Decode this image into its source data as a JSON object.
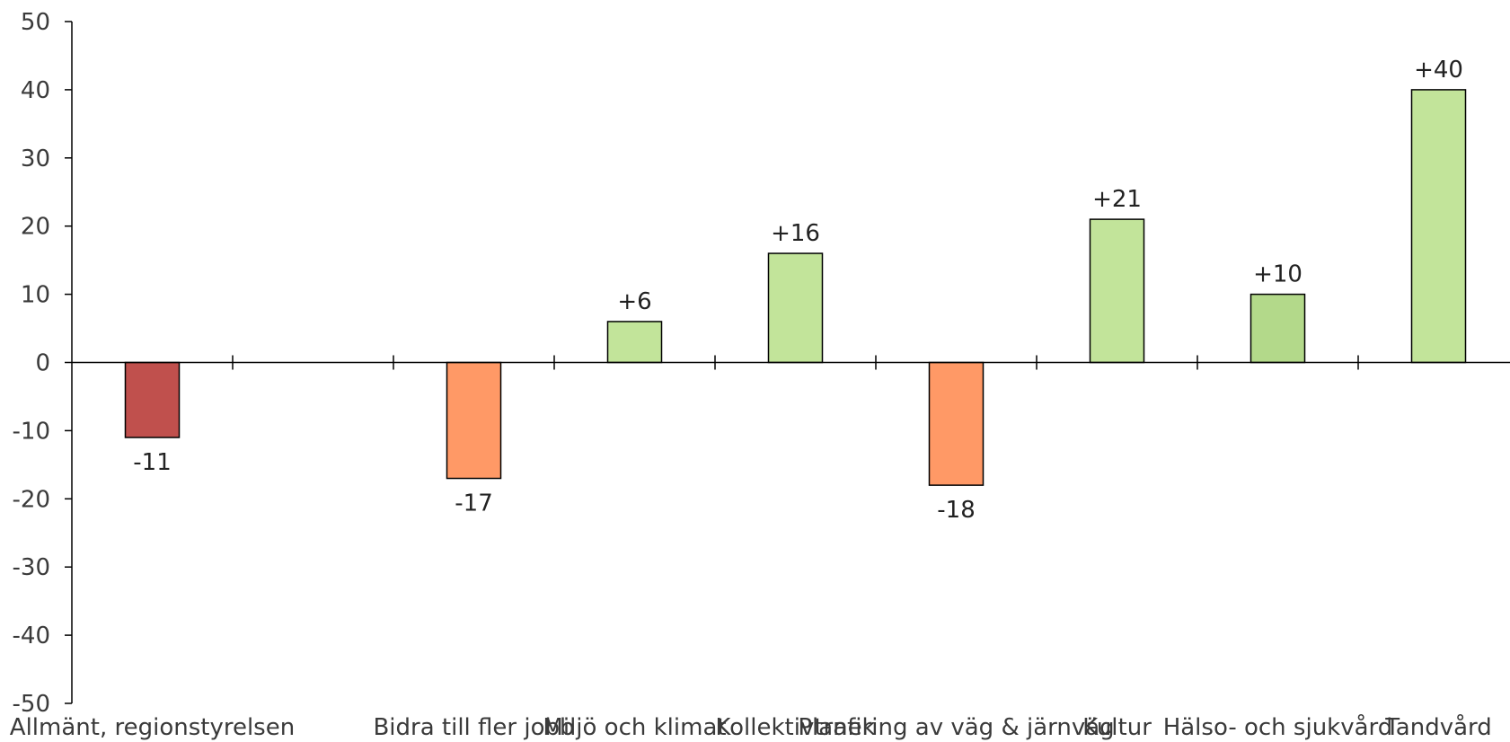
{
  "chart_data": {
    "type": "bar",
    "title": "",
    "xlabel": "",
    "ylabel": "",
    "categories": [
      "Allmänt, regionstyrelsen",
      "",
      "Bidra till fler jobb",
      "Miljö och klimat",
      "Kollektivtrafik",
      "Planering av väg & järnväg",
      "Kultur",
      "Hälso- och sjukvård",
      "Tandvård"
    ],
    "values": [
      -11,
      null,
      -17,
      6,
      16,
      -18,
      21,
      10,
      40
    ],
    "data_labels": [
      "-11",
      "",
      "-17",
      "+6",
      "+16",
      "-18",
      "+21",
      "+10",
      "+40"
    ],
    "colors": [
      "#c0504d",
      null,
      "#ff9966",
      "#c2e49a",
      "#c2e49a",
      "#ff9966",
      "#c2e49a",
      "#b3d98a",
      "#c2e49a"
    ],
    "ylim": [
      -50,
      50
    ],
    "yticks": [
      50,
      40,
      30,
      20,
      10,
      0,
      -10,
      -20,
      -30,
      -40,
      -50
    ],
    "ytick_labels": [
      "50",
      "40",
      "30",
      "20",
      "10",
      "0",
      "-10",
      "-20",
      "-30",
      "-40",
      "-50"
    ],
    "grid": false,
    "legend": "none"
  }
}
